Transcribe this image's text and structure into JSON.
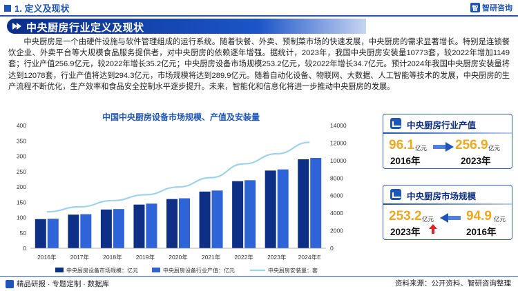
{
  "header": {
    "section": "1. 定义及现状",
    "logo": "智研咨询",
    "logo_mark": "智"
  },
  "banner": {
    "title": "中央厨房行业定义及现状"
  },
  "intro": "中央厨房是一个由硬件设施与软件管理组成的运行系统。随着快餐、外卖、预制菜市场的快速发展，中央厨房的需求显著增长。特别是连锁餐饮企业、外卖平台等大规模食品服务提供者，对中央厨房的依赖逐年增强。据统计，2023年，我国中央厨房安装量10773套，较2022年增加1149套；行业产值256.9亿元，较2022年增长35.2亿元；中央厨房设备市场规模253.2亿元，较2022年增长34.7亿元。预计2024年我国中央厨房安装量将达到12078套，行业产值将达到294.3亿元，市场规模将达到289.9亿元。随着自动化设备、物联网、大数据、人工智能等技术的发展，中央厨房的生产流程不断优化，生产效率和食品安全控制水平逐步提升。未来，智能化和信息化将进一步推动中央厨房的发展。",
  "chart_data": {
    "type": "bar",
    "title": "中国中央厨房设备市场规模、产值及安装量",
    "categories": [
      "2016年",
      "2017年",
      "2018年",
      "2019年",
      "2020年",
      "2021年",
      "2022年",
      "2023年",
      "2024年E"
    ],
    "series": [
      {
        "name": "中央厨房设备市场规模：亿元",
        "type": "bar",
        "axis": "left",
        "color": "#0e2f86",
        "values": [
          94.9,
          109.5,
          126.2,
          142.3,
          160.3,
          184.7,
          218.5,
          253.2,
          289.9
        ]
      },
      {
        "name": "中央厨房设备行业产值：亿元",
        "type": "bar",
        "axis": "left",
        "color": "#2f63d8",
        "values": [
          96.1,
          110.9,
          127.7,
          145.4,
          162.8,
          188.1,
          221.7,
          256.9,
          294.3
        ]
      },
      {
        "name": "中央厨房安装量：套",
        "type": "line",
        "axis": "right",
        "color": "#9ed3ef",
        "values": [
          4150,
          4720,
          5430,
          6100,
          6980,
          8050,
          9624,
          10773,
          12078
        ]
      }
    ],
    "yaxis_left": {
      "ticks": [
        "0",
        "50",
        "100",
        "150",
        "200",
        "250",
        "300",
        "350",
        "400"
      ],
      "ylim": [
        0,
        400
      ]
    },
    "yaxis_right": {
      "ticks": [
        "0",
        "2000",
        "4000",
        "6000",
        "8000",
        "10000",
        "12000",
        "14000"
      ],
      "ylim": [
        0,
        14000
      ]
    },
    "legend_position": "bottom",
    "grid": false
  },
  "card_output": {
    "title": "中央厨房行业产值",
    "left_value": "96.1",
    "left_unit": "亿元",
    "left_year": "2016年",
    "right_value": "256.9",
    "right_unit": "亿元",
    "right_year": "2023年"
  },
  "card_market": {
    "title": "中央厨房市场规模",
    "left_value": "253.2",
    "left_unit": "亿元",
    "left_year": "2023年",
    "right_value": "94.9",
    "right_unit": "亿元",
    "right_year": "2016年"
  },
  "footer": {
    "left": "精品研报 · 专题定制 · 数据库",
    "right": "资料来源：公开资料、智研咨询整理"
  },
  "colors": {
    "accent": "#1e55b8",
    "highlight": "#f0a81e",
    "up_arrow": "#e02222"
  }
}
